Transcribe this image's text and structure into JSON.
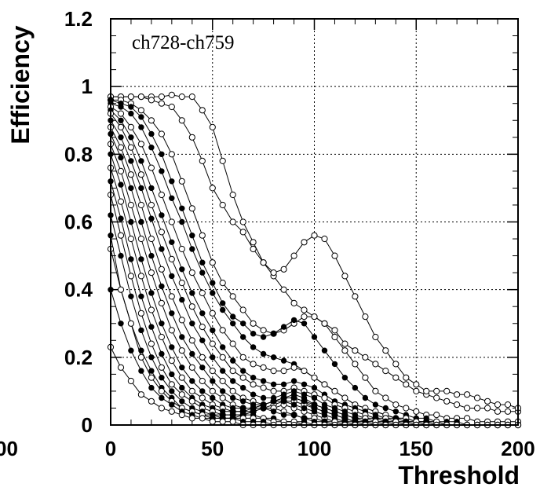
{
  "chart_data": {
    "type": "line",
    "title": "",
    "annotation": "ch728-ch759",
    "xlabel": "Threshold",
    "ylabel": "Efficiency",
    "xlim": [
      0,
      200
    ],
    "ylim": [
      0,
      1.2
    ],
    "grid": true,
    "stray_tick_label": "00",
    "x_ticks": [
      "0",
      "50",
      "100",
      "150",
      "200"
    ],
    "y_ticks": [
      "0",
      "0.2",
      "0.4",
      "0.6",
      "0.8",
      "1",
      "1.2"
    ],
    "x": [
      0,
      5,
      10,
      15,
      20,
      25,
      30,
      35,
      40,
      45,
      50,
      55,
      60,
      65,
      70,
      75,
      80,
      85,
      90,
      95,
      100,
      105,
      110,
      115,
      120,
      125,
      130,
      135,
      140,
      145,
      150,
      155,
      160,
      165,
      170,
      175,
      180,
      185,
      190,
      195,
      200
    ],
    "series": [
      {
        "marker": "open",
        "values": [
          0.97,
          0.97,
          0.97,
          0.97,
          0.97,
          0.97,
          0.975,
          0.97,
          0.97,
          0.93,
          0.88,
          0.78,
          0.68,
          0.6,
          0.54,
          0.48,
          0.44,
          0.4,
          0.36,
          0.34,
          0.32,
          0.3,
          0.28,
          0.24,
          0.22,
          0.2,
          0.18,
          0.16,
          0.14,
          0.12,
          0.1,
          0.09,
          0.08,
          0.07,
          0.06,
          0.05,
          0.05,
          0.05,
          0.04,
          0.04,
          0.04
        ]
      },
      {
        "marker": "open",
        "values": [
          0.97,
          0.97,
          0.97,
          0.97,
          0.96,
          0.95,
          0.94,
          0.9,
          0.85,
          0.78,
          0.7,
          0.65,
          0.6,
          0.57,
          0.52,
          0.48,
          0.45,
          0.46,
          0.5,
          0.54,
          0.56,
          0.55,
          0.5,
          0.44,
          0.38,
          0.32,
          0.26,
          0.22,
          0.18,
          0.14,
          0.12,
          0.1,
          0.1,
          0.1,
          0.09,
          0.09,
          0.08,
          0.07,
          0.06,
          0.06,
          0.05
        ]
      },
      {
        "marker": "open",
        "values": [
          0.96,
          0.96,
          0.95,
          0.93,
          0.9,
          0.86,
          0.8,
          0.72,
          0.64,
          0.56,
          0.48,
          0.42,
          0.38,
          0.34,
          0.3,
          0.28,
          0.27,
          0.28,
          0.3,
          0.32,
          0.32,
          0.3,
          0.26,
          0.22,
          0.18,
          0.14,
          0.1,
          0.08,
          0.06,
          0.05,
          0.04,
          0.03,
          0.03,
          0.02,
          0.02,
          0.02,
          0.01,
          0.01,
          0.01,
          0.01,
          0.01
        ]
      },
      {
        "marker": "filled",
        "values": [
          0.96,
          0.95,
          0.94,
          0.91,
          0.86,
          0.8,
          0.72,
          0.64,
          0.56,
          0.48,
          0.42,
          0.36,
          0.32,
          0.3,
          0.27,
          0.26,
          0.27,
          0.29,
          0.31,
          0.3,
          0.26,
          0.22,
          0.18,
          0.14,
          0.11,
          0.08,
          0.06,
          0.05,
          0.04,
          0.03,
          0.02,
          0.02,
          0.01,
          0.01,
          0.01,
          0.0,
          0.0,
          0.0,
          0.0,
          0.0,
          0.0
        ]
      },
      {
        "marker": "filled",
        "values": [
          0.95,
          0.94,
          0.92,
          0.88,
          0.82,
          0.75,
          0.67,
          0.6,
          0.52,
          0.45,
          0.39,
          0.34,
          0.3,
          0.26,
          0.23,
          0.21,
          0.2,
          0.19,
          0.18,
          0.16,
          0.14,
          0.12,
          0.1,
          0.08,
          0.06,
          0.05,
          0.04,
          0.03,
          0.02,
          0.02,
          0.01,
          0.01,
          0.01,
          0.0,
          0.0,
          0.0,
          0.0,
          0.0,
          0.0,
          0.0,
          0.0
        ]
      },
      {
        "marker": "open",
        "values": [
          0.94,
          0.92,
          0.88,
          0.83,
          0.76,
          0.68,
          0.6,
          0.52,
          0.45,
          0.39,
          0.33,
          0.28,
          0.24,
          0.2,
          0.18,
          0.17,
          0.16,
          0.16,
          0.17,
          0.16,
          0.14,
          0.12,
          0.1,
          0.08,
          0.06,
          0.05,
          0.04,
          0.03,
          0.02,
          0.02,
          0.01,
          0.01,
          0.01,
          0.0,
          0.0,
          0.0,
          0.0,
          0.0,
          0.0,
          0.0,
          0.0
        ]
      },
      {
        "marker": "filled",
        "values": [
          0.93,
          0.9,
          0.85,
          0.78,
          0.7,
          0.62,
          0.54,
          0.46,
          0.39,
          0.33,
          0.28,
          0.23,
          0.19,
          0.16,
          0.14,
          0.13,
          0.12,
          0.12,
          0.13,
          0.12,
          0.11,
          0.09,
          0.07,
          0.06,
          0.05,
          0.04,
          0.03,
          0.02,
          0.02,
          0.01,
          0.01,
          0.01,
          0.0,
          0.0,
          0.0,
          0.0,
          0.0,
          0.0,
          0.0,
          0.0,
          0.0
        ]
      },
      {
        "marker": "open",
        "values": [
          0.92,
          0.88,
          0.82,
          0.74,
          0.65,
          0.57,
          0.49,
          0.42,
          0.35,
          0.29,
          0.24,
          0.2,
          0.16,
          0.14,
          0.12,
          0.11,
          0.1,
          0.1,
          0.11,
          0.1,
          0.09,
          0.08,
          0.06,
          0.05,
          0.04,
          0.03,
          0.02,
          0.02,
          0.01,
          0.01,
          0.01,
          0.0,
          0.0,
          0.0,
          0.0,
          0.0,
          0.0,
          0.0,
          0.0,
          0.0,
          0.0
        ]
      },
      {
        "marker": "filled",
        "values": [
          0.9,
          0.85,
          0.78,
          0.7,
          0.61,
          0.52,
          0.44,
          0.37,
          0.3,
          0.25,
          0.2,
          0.16,
          0.13,
          0.11,
          0.09,
          0.08,
          0.08,
          0.09,
          0.1,
          0.09,
          0.08,
          0.06,
          0.05,
          0.04,
          0.03,
          0.02,
          0.02,
          0.01,
          0.01,
          0.01,
          0.0,
          0.0,
          0.0,
          0.0,
          0.0,
          0.0,
          0.0,
          0.0,
          0.0,
          0.0,
          0.0
        ]
      },
      {
        "marker": "open",
        "values": [
          0.88,
          0.82,
          0.74,
          0.65,
          0.55,
          0.46,
          0.38,
          0.31,
          0.25,
          0.2,
          0.16,
          0.13,
          0.1,
          0.08,
          0.07,
          0.06,
          0.07,
          0.08,
          0.08,
          0.07,
          0.06,
          0.05,
          0.04,
          0.03,
          0.02,
          0.02,
          0.01,
          0.01,
          0.01,
          0.0,
          0.0,
          0.0,
          0.0,
          0.0,
          0.0,
          0.0,
          0.0,
          0.0,
          0.0,
          0.0,
          0.0
        ]
      },
      {
        "marker": "filled",
        "values": [
          0.86,
          0.79,
          0.7,
          0.6,
          0.5,
          0.41,
          0.33,
          0.26,
          0.21,
          0.17,
          0.13,
          0.1,
          0.08,
          0.07,
          0.06,
          0.06,
          0.07,
          0.08,
          0.09,
          0.08,
          0.06,
          0.05,
          0.04,
          0.03,
          0.02,
          0.01,
          0.01,
          0.01,
          0.0,
          0.0,
          0.0,
          0.0,
          0.0,
          0.0,
          0.0,
          0.0,
          0.0,
          0.0,
          0.0,
          0.0,
          0.0
        ]
      },
      {
        "marker": "open",
        "values": [
          0.83,
          0.75,
          0.65,
          0.55,
          0.45,
          0.36,
          0.28,
          0.22,
          0.17,
          0.13,
          0.1,
          0.08,
          0.06,
          0.05,
          0.05,
          0.05,
          0.06,
          0.07,
          0.07,
          0.06,
          0.05,
          0.04,
          0.03,
          0.02,
          0.01,
          0.01,
          0.01,
          0.0,
          0.0,
          0.0,
          0.0,
          0.0,
          0.0,
          0.0,
          0.0,
          0.0,
          0.0,
          0.0,
          0.0,
          0.0,
          0.0
        ]
      },
      {
        "marker": "filled",
        "values": [
          0.8,
          0.71,
          0.6,
          0.49,
          0.39,
          0.3,
          0.23,
          0.17,
          0.13,
          0.1,
          0.08,
          0.06,
          0.05,
          0.05,
          0.05,
          0.06,
          0.07,
          0.08,
          0.08,
          0.07,
          0.05,
          0.04,
          0.03,
          0.02,
          0.01,
          0.01,
          0.0,
          0.0,
          0.0,
          0.0,
          0.0,
          0.0,
          0.0,
          0.0,
          0.0,
          0.0,
          0.0,
          0.0,
          0.0,
          0.0,
          0.0
        ]
      },
      {
        "marker": "open",
        "values": [
          0.76,
          0.66,
          0.55,
          0.44,
          0.34,
          0.26,
          0.19,
          0.14,
          0.1,
          0.08,
          0.06,
          0.05,
          0.04,
          0.04,
          0.04,
          0.05,
          0.05,
          0.06,
          0.05,
          0.04,
          0.03,
          0.02,
          0.01,
          0.01,
          0.0,
          0.0,
          0.0,
          0.0,
          0.0,
          0.0,
          0.0,
          0.0,
          0.0,
          0.0,
          0.0,
          0.0,
          0.0,
          0.0,
          0.0,
          0.0,
          0.0
        ]
      },
      {
        "marker": "filled",
        "values": [
          0.72,
          0.61,
          0.49,
          0.38,
          0.29,
          0.21,
          0.15,
          0.11,
          0.08,
          0.06,
          0.05,
          0.04,
          0.04,
          0.04,
          0.05,
          0.06,
          0.07,
          0.07,
          0.06,
          0.05,
          0.04,
          0.03,
          0.02,
          0.01,
          0.01,
          0.0,
          0.0,
          0.0,
          0.0,
          0.0,
          0.0,
          0.0,
          0.0,
          0.0,
          0.0,
          0.0,
          0.0,
          0.0,
          0.0,
          0.0,
          0.0
        ]
      },
      {
        "marker": "open",
        "values": [
          0.68,
          0.56,
          0.44,
          0.33,
          0.24,
          0.17,
          0.12,
          0.09,
          0.07,
          0.05,
          0.04,
          0.03,
          0.03,
          0.03,
          0.04,
          0.05,
          0.05,
          0.04,
          0.03,
          0.02,
          0.02,
          0.01,
          0.01,
          0.0,
          0.0,
          0.0,
          0.0,
          0.0,
          0.0,
          0.0,
          0.0,
          0.0,
          0.0,
          0.0,
          0.0,
          0.0,
          0.0,
          0.0,
          0.0,
          0.0,
          0.0
        ]
      },
      {
        "marker": "filled",
        "values": [
          0.62,
          0.5,
          0.38,
          0.28,
          0.2,
          0.14,
          0.1,
          0.07,
          0.05,
          0.04,
          0.03,
          0.03,
          0.03,
          0.03,
          0.04,
          0.05,
          0.04,
          0.03,
          0.03,
          0.02,
          0.01,
          0.01,
          0.0,
          0.0,
          0.0,
          0.0,
          0.0,
          0.0,
          0.0,
          0.0,
          0.0,
          0.0,
          0.0,
          0.0,
          0.0,
          0.0,
          0.0,
          0.0,
          0.0,
          0.0,
          0.0
        ]
      },
      {
        "marker": "filled",
        "values": [
          0.56,
          0.4,
          0.3,
          0.22,
          0.16,
          0.11,
          0.08,
          0.05,
          0.04,
          0.03,
          0.03,
          0.02,
          0.02,
          0.03,
          0.03,
          0.02,
          0.02,
          0.01,
          0.01,
          0.01,
          0.0,
          0.0,
          0.0,
          0.0,
          0.0,
          0.0,
          0.0,
          0.0,
          0.0,
          0.0,
          0.0,
          0.0,
          0.0,
          0.0,
          0.0,
          0.0,
          0.0,
          0.0,
          0.0,
          0.0,
          0.0
        ]
      },
      {
        "marker": "open",
        "values": [
          0.52,
          0.4,
          0.3,
          0.2,
          0.14,
          0.1,
          0.07,
          0.05,
          0.04,
          0.03,
          0.02,
          0.02,
          0.02,
          0.02,
          0.02,
          0.02,
          0.01,
          0.01,
          0.01,
          0.0,
          0.0,
          0.0,
          0.0,
          0.0,
          0.0,
          0.0,
          0.0,
          0.0,
          0.0,
          0.0,
          0.0,
          0.0,
          0.0,
          0.0,
          0.0,
          0.0,
          0.0,
          0.0,
          0.0,
          0.0,
          0.0
        ]
      },
      {
        "marker": "filled",
        "values": [
          0.4,
          0.3,
          0.22,
          0.16,
          0.11,
          0.08,
          0.06,
          0.04,
          0.03,
          0.02,
          0.02,
          0.02,
          0.02,
          0.01,
          0.01,
          0.01,
          0.0,
          0.0,
          0.0,
          0.0,
          0.0,
          0.0,
          0.0,
          0.0,
          0.0,
          0.0,
          0.0,
          0.0,
          0.0,
          0.0,
          0.0,
          0.0,
          0.0,
          0.0,
          0.0,
          0.0,
          0.0,
          0.0,
          0.0,
          0.0,
          0.0
        ]
      },
      {
        "marker": "open",
        "values": [
          0.23,
          0.17,
          0.13,
          0.09,
          0.07,
          0.05,
          0.04,
          0.03,
          0.02,
          0.02,
          0.01,
          0.01,
          0.01,
          0.0,
          0.0,
          0.0,
          0.0,
          0.0,
          0.0,
          0.0,
          0.0,
          0.0,
          0.0,
          0.0,
          0.0,
          0.0,
          0.0,
          0.0,
          0.0,
          0.0,
          0.0,
          0.0,
          0.0,
          0.0,
          0.0,
          0.0,
          0.0,
          0.0,
          0.0,
          0.0,
          0.0
        ]
      }
    ]
  }
}
